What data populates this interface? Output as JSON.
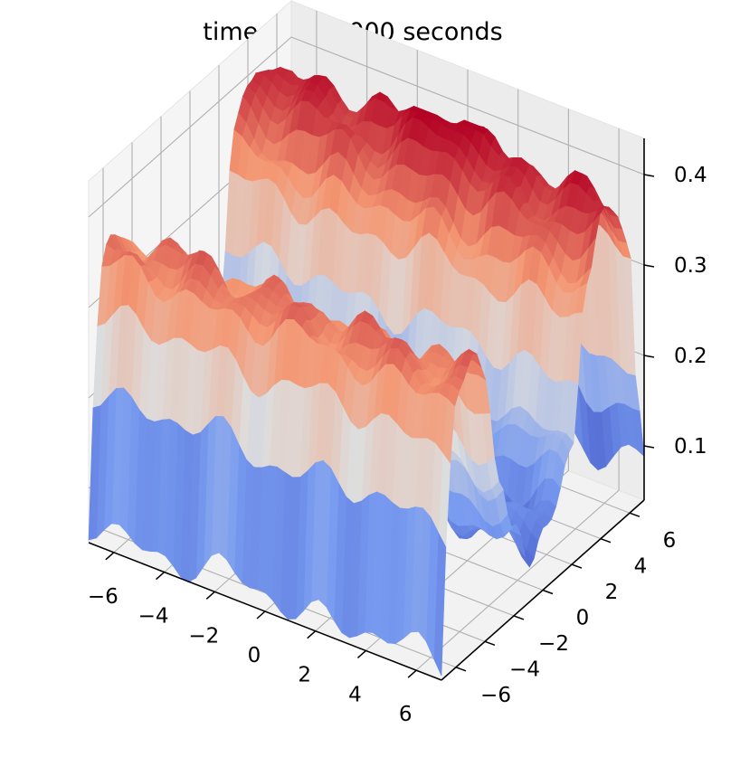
{
  "chart_data": {
    "type": "surface",
    "title": "time = 0.60000 seconds",
    "xlabel": "",
    "ylabel": "",
    "zlabel": "",
    "x_ticks": [
      "−6",
      "−4",
      "−2",
      "0",
      "2",
      "4",
      "6"
    ],
    "y_ticks": [
      "−6",
      "−4",
      "−2",
      "0",
      "2",
      "4",
      "6"
    ],
    "z_ticks": [
      "0.1",
      "0.2",
      "0.3",
      "0.4"
    ],
    "x_tick_values": [
      -6,
      -4,
      -2,
      0,
      2,
      4,
      6
    ],
    "y_tick_values": [
      -6,
      -4,
      -2,
      0,
      2,
      4,
      6
    ],
    "z_tick_values": [
      0.1,
      0.2,
      0.3,
      0.4
    ],
    "xlim": [
      -7,
      7
    ],
    "ylim": [
      -7,
      7
    ],
    "zlim": [
      0.04,
      0.44
    ],
    "colormap": "coolwarm",
    "grid": true,
    "surface_profile": {
      "description_of_axes": "height z as a function of y (nearly uniform along x)",
      "y": [
        -7,
        -6.5,
        -6,
        -5,
        -4,
        -3,
        -2,
        -1,
        0,
        1,
        2,
        3,
        4,
        5,
        6,
        6.5,
        7
      ],
      "z": [
        0.06,
        0.28,
        0.34,
        0.35,
        0.33,
        0.2,
        0.13,
        0.1,
        0.12,
        0.11,
        0.17,
        0.33,
        0.38,
        0.4,
        0.35,
        0.18,
        0.08
      ]
    },
    "z_peak": 0.42
  }
}
